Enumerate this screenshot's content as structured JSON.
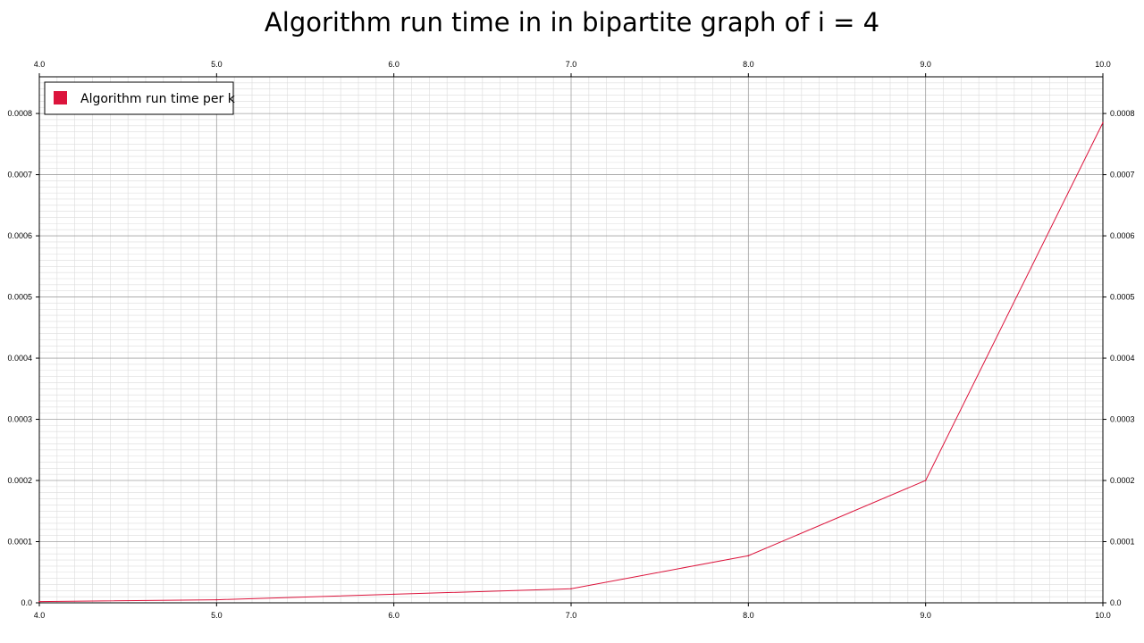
{
  "chart_data": {
    "type": "line",
    "title": "Algorithm run time in in bipartite graph of i = 4",
    "xlabel": "",
    "ylabel": "",
    "xlim": [
      4.0,
      10.0
    ],
    "ylim": [
      0.0,
      0.00086
    ],
    "x_ticks": [
      "4.0",
      "5.0",
      "6.0",
      "7.0",
      "8.0",
      "9.0",
      "10.0"
    ],
    "y_ticks": [
      "0.0",
      "0.0001",
      "0.0002",
      "0.0003",
      "0.0004",
      "0.0005",
      "0.0006",
      "0.0007",
      "0.0008"
    ],
    "grid": true,
    "legend_position": "top-left",
    "series": [
      {
        "name": "Algorithm run time per k",
        "color": "#dc143c",
        "x": [
          4.0,
          5.0,
          6.0,
          7.0,
          8.0,
          9.0,
          10.0
        ],
        "y": [
          2e-06,
          5e-06,
          1.4e-05,
          2.3e-05,
          7.7e-05,
          0.0002,
          0.000785
        ]
      }
    ]
  }
}
